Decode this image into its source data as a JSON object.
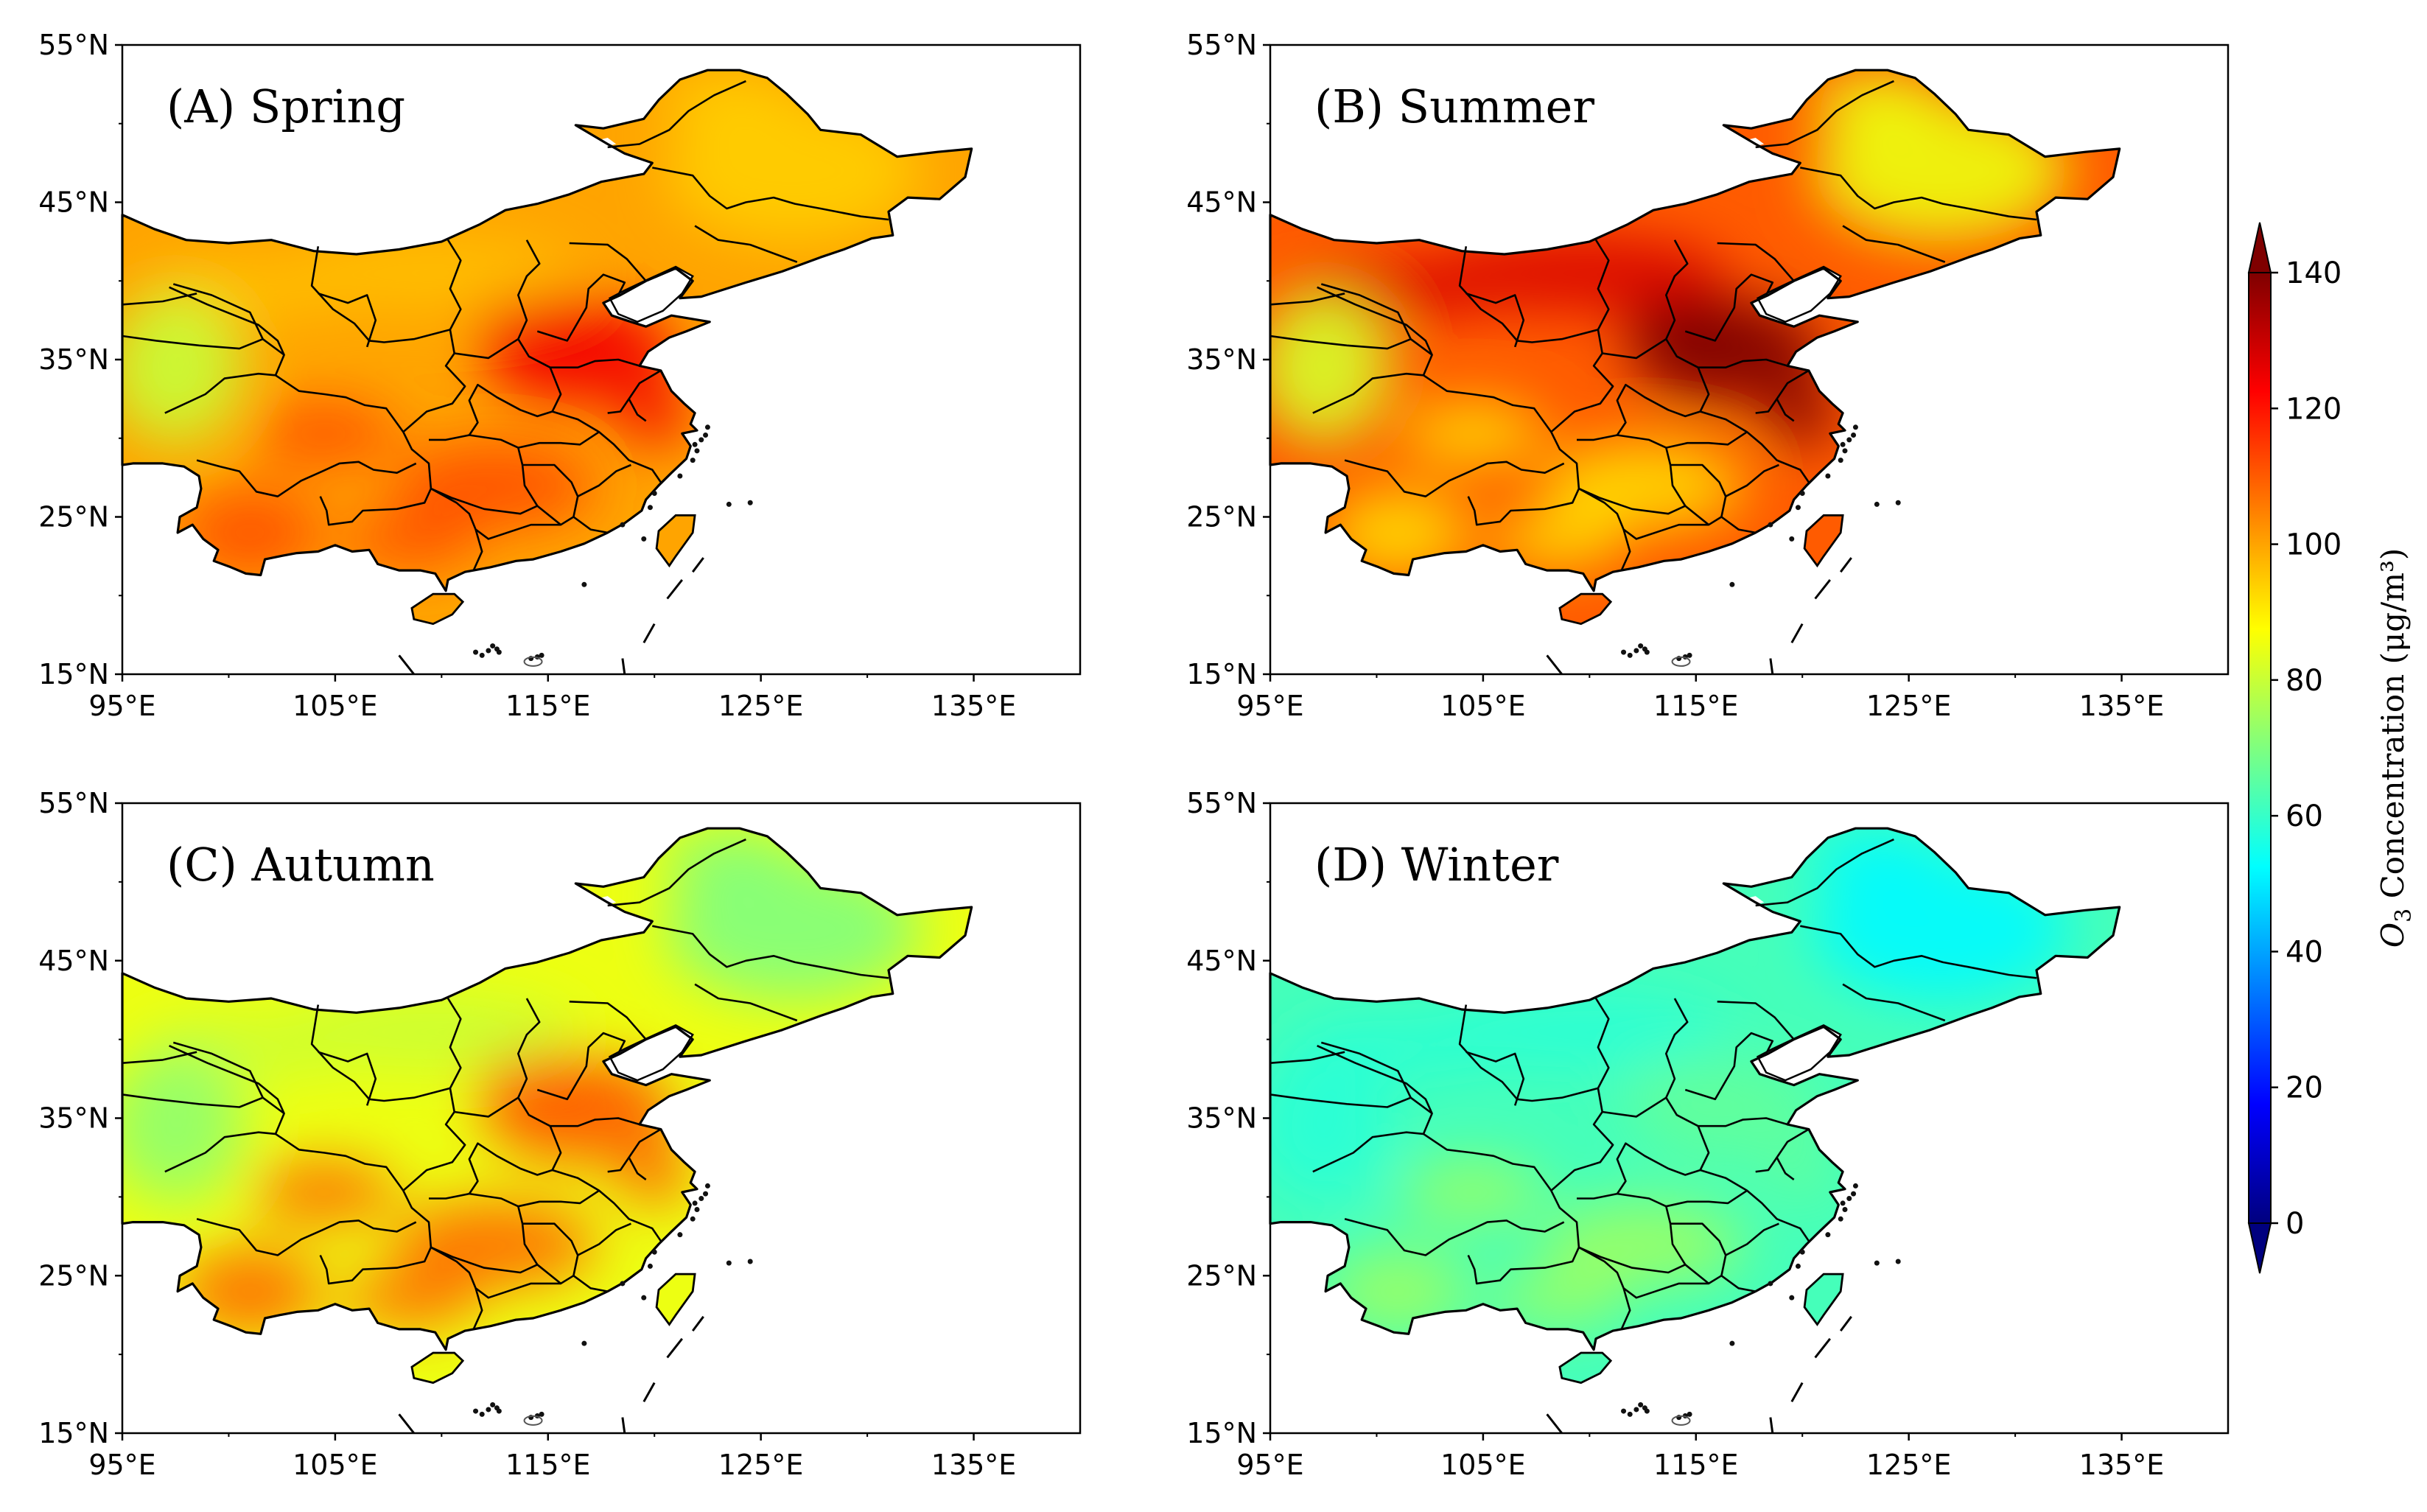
{
  "chart_data": {
    "type": "heatmap",
    "description_variable": "Seasonal mean surface ozone concentration",
    "colorbar": {
      "label_prefix": "O",
      "label_subscript": "3",
      "label_suffix": " Concentration (μg/m³)",
      "min": 0,
      "max": 140,
      "ticks": [
        0,
        20,
        40,
        60,
        80,
        100,
        120,
        140
      ],
      "tick_labels": [
        "0",
        "20",
        "40",
        "60",
        "80",
        "100",
        "120",
        "140"
      ],
      "extend": "both",
      "colormap": [
        "#00007f",
        "#0000ff",
        "#007fff",
        "#00ffff",
        "#7fff7f",
        "#ffff00",
        "#ff7f00",
        "#ff0000",
        "#7f0000"
      ]
    },
    "axes": {
      "lon_range": [
        95,
        140
      ],
      "lat_range": [
        15,
        55
      ],
      "x_ticks": [
        95,
        105,
        115,
        125,
        135
      ],
      "x_tick_labels": [
        "95°E",
        "105°E",
        "115°E",
        "125°E",
        "135°E"
      ],
      "y_ticks": [
        15,
        25,
        35,
        45,
        55
      ],
      "y_tick_labels": [
        "15°N",
        "25°N",
        "35°N",
        "45°N",
        "55°N"
      ]
    },
    "panels": [
      {
        "id": "A",
        "title": "(A) Spring",
        "season": "Spring",
        "typical": 100,
        "north": 96,
        "northeast": 94,
        "south": 112,
        "hotspot": 124,
        "west": 80
      },
      {
        "id": "B",
        "title": "(B) Summer",
        "season": "Summer",
        "typical": 110,
        "north": 128,
        "northeast": 85,
        "south": 92,
        "hotspot": 142,
        "west": 82
      },
      {
        "id": "C",
        "title": "(C) Autumn",
        "season": "Autumn",
        "typical": 85,
        "north": 80,
        "northeast": 70,
        "south": 108,
        "hotspot": 110,
        "west": 72
      },
      {
        "id": "D",
        "title": "(D) Winter",
        "season": "Winter",
        "typical": 62,
        "north": 58,
        "northeast": 52,
        "south": 74,
        "hotspot": 66,
        "west": 58
      }
    ]
  }
}
